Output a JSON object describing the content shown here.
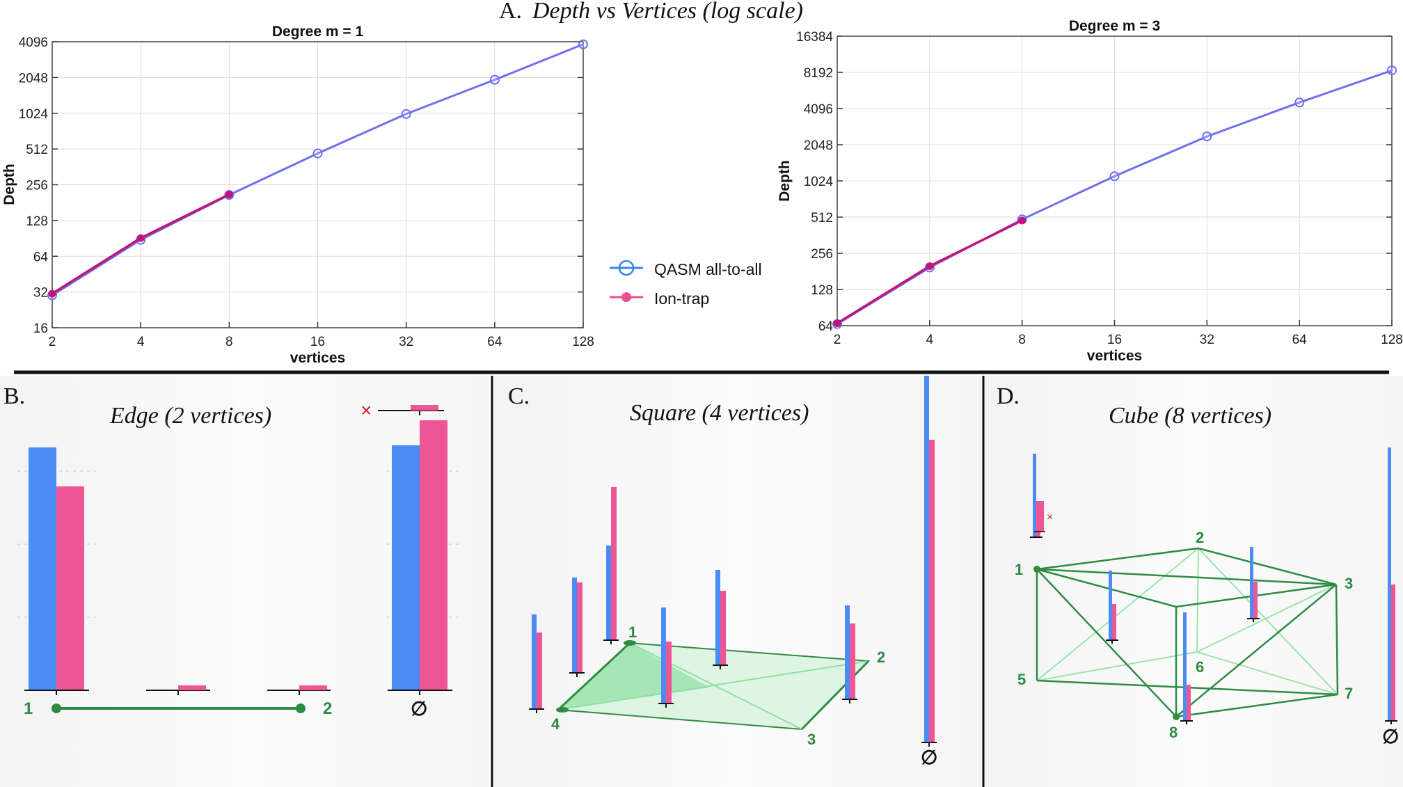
{
  "main_title_letter": "A.",
  "main_title": "Depth vs Vertices (log scale)",
  "colors": {
    "qasm": "#6f6ff2",
    "qasm_legend": "#3a86e8",
    "iontrap": "#c0157a",
    "iontrap_legend": "#ea4f92",
    "bar_blue": "#4a8cf4",
    "bar_pink": "#ee5597",
    "graph_green": "#2e8b43",
    "cross_red": "#cc2222"
  },
  "legend": {
    "items": [
      "QASM all-to-all",
      "Ion-trap"
    ]
  },
  "chart_data": [
    {
      "type": "line",
      "title": "Degree m = 1",
      "xlabel": "vertices",
      "ylabel": "Depth",
      "xscale": "log2",
      "yscale": "log2",
      "xlim": [
        2,
        128
      ],
      "ylim": [
        16,
        4096
      ],
      "xticks": [
        "2",
        "4",
        "8",
        "16",
        "32",
        "64",
        "128"
      ],
      "yticks": [
        "16",
        "32",
        "64",
        "128",
        "256",
        "512",
        "1024",
        "2048",
        "4096"
      ],
      "grid": true,
      "series": [
        {
          "name": "QASM all-to-all",
          "marker": "open-circle",
          "x": [
            2,
            4,
            8,
            16,
            32,
            64,
            128
          ],
          "y": [
            30,
            88,
            210,
            470,
            1010,
            1960,
            3900
          ]
        },
        {
          "name": "Ion-trap",
          "marker": "filled-circle",
          "x": [
            2,
            4,
            8
          ],
          "y": [
            31,
            91,
            212
          ]
        }
      ]
    },
    {
      "type": "line",
      "title": "Degree m = 3",
      "xlabel": "vertices",
      "ylabel": "Depth",
      "xscale": "log2",
      "yscale": "log2",
      "xlim": [
        2,
        128
      ],
      "ylim": [
        64,
        16384
      ],
      "xticks": [
        "2",
        "4",
        "8",
        "16",
        "32",
        "64",
        "128"
      ],
      "yticks": [
        "64",
        "128",
        "256",
        "512",
        "1024",
        "2048",
        "4096",
        "8192",
        "16384"
      ],
      "grid": true,
      "series": [
        {
          "name": "QASM all-to-all",
          "marker": "open-circle",
          "x": [
            2,
            4,
            8,
            16,
            32,
            64,
            128
          ],
          "y": [
            66,
            195,
            490,
            1120,
            2400,
            4600,
            8500
          ]
        },
        {
          "name": "Ion-trap",
          "marker": "filled-circle",
          "x": [
            2,
            4,
            8
          ],
          "y": [
            67,
            200,
            480
          ]
        }
      ]
    }
  ],
  "panels": {
    "b": {
      "letter": "B.",
      "title": "Edge (2 vertices)",
      "vertex_labels": [
        "1",
        "2"
      ],
      "empty_set": "∅",
      "cross": "×"
    },
    "c": {
      "letter": "C.",
      "title": "Square (4 vertices)",
      "vertex_labels": [
        "1",
        "2",
        "3",
        "4"
      ],
      "empty_set": "∅"
    },
    "d": {
      "letter": "D.",
      "title": "Cube (8 vertices)",
      "vertex_labels": [
        "1",
        "2",
        "3",
        "5",
        "6",
        "7",
        "8"
      ],
      "empty_set": "∅",
      "cross": "×"
    }
  }
}
